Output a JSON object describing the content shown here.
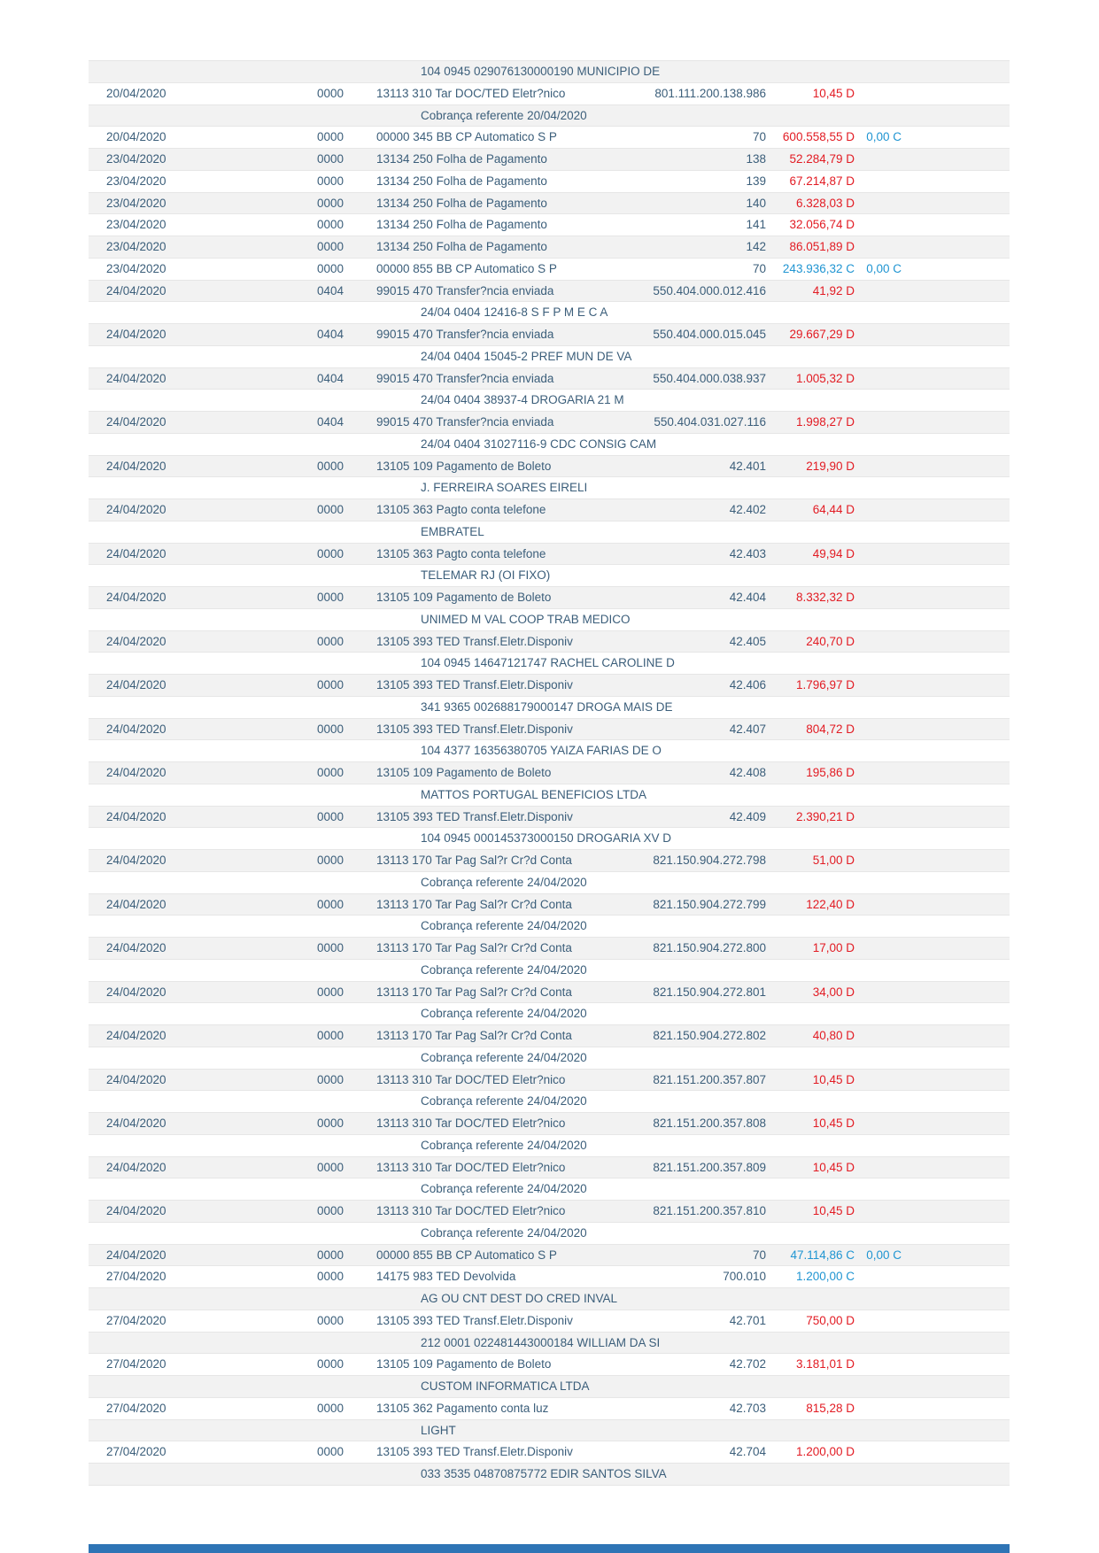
{
  "document_type": "bank-statement-page",
  "colors": {
    "debit": "#E21B23",
    "credit": "#2095D2",
    "body_text": "#3B5E7A",
    "stripe": "#F2F2F2",
    "footer_bar": "#2E74B5"
  },
  "table": {
    "columns": [
      "date",
      "agency",
      "description",
      "document",
      "value",
      "balance"
    ],
    "rows": [
      {
        "k": "d",
        "text": "104 0945 029076130000190 MUNICIPIO DE"
      },
      {
        "k": "m",
        "date": "20/04/2020",
        "ag": "0000",
        "desc": "13113 310 Tar DOC/TED Eletr?nico",
        "doc": "801.111.200.138.986",
        "val": "10,45",
        "vt": "D",
        "bal": null
      },
      {
        "k": "d",
        "text": "Cobrança referente 20/04/2020"
      },
      {
        "k": "m",
        "date": "20/04/2020",
        "ag": "0000",
        "desc": "00000 345 BB CP Automatico S P",
        "doc": "70",
        "val": "600.558,55",
        "vt": "D",
        "bal": "0,00 C"
      },
      {
        "k": "m",
        "date": "23/04/2020",
        "ag": "0000",
        "desc": "13134 250 Folha de Pagamento",
        "doc": "138",
        "val": "52.284,79",
        "vt": "D",
        "bal": null
      },
      {
        "k": "m",
        "date": "23/04/2020",
        "ag": "0000",
        "desc": "13134 250 Folha de Pagamento",
        "doc": "139",
        "val": "67.214,87",
        "vt": "D",
        "bal": null
      },
      {
        "k": "m",
        "date": "23/04/2020",
        "ag": "0000",
        "desc": "13134 250 Folha de Pagamento",
        "doc": "140",
        "val": "6.328,03",
        "vt": "D",
        "bal": null
      },
      {
        "k": "m",
        "date": "23/04/2020",
        "ag": "0000",
        "desc": "13134 250 Folha de Pagamento",
        "doc": "141",
        "val": "32.056,74",
        "vt": "D",
        "bal": null
      },
      {
        "k": "m",
        "date": "23/04/2020",
        "ag": "0000",
        "desc": "13134 250 Folha de Pagamento",
        "doc": "142",
        "val": "86.051,89",
        "vt": "D",
        "bal": null
      },
      {
        "k": "m",
        "date": "23/04/2020",
        "ag": "0000",
        "desc": "00000 855 BB CP Automatico S P",
        "doc": "70",
        "val": "243.936,32",
        "vt": "C",
        "bal": "0,00 C"
      },
      {
        "k": "m",
        "date": "24/04/2020",
        "ag": "0404",
        "desc": "99015 470 Transfer?ncia enviada",
        "doc": "550.404.000.012.416",
        "val": "41,92",
        "vt": "D",
        "bal": null
      },
      {
        "k": "d",
        "text": "24/04 0404 12416-8 S F P M E C A"
      },
      {
        "k": "m",
        "date": "24/04/2020",
        "ag": "0404",
        "desc": "99015 470 Transfer?ncia enviada",
        "doc": "550.404.000.015.045",
        "val": "29.667,29",
        "vt": "D",
        "bal": null
      },
      {
        "k": "d",
        "text": "24/04 0404 15045-2 PREF MUN DE VA"
      },
      {
        "k": "m",
        "date": "24/04/2020",
        "ag": "0404",
        "desc": "99015 470 Transfer?ncia enviada",
        "doc": "550.404.000.038.937",
        "val": "1.005,32",
        "vt": "D",
        "bal": null
      },
      {
        "k": "d",
        "text": "24/04 0404 38937-4 DROGARIA 21 M"
      },
      {
        "k": "m",
        "date": "24/04/2020",
        "ag": "0404",
        "desc": "99015 470 Transfer?ncia enviada",
        "doc": "550.404.031.027.116",
        "val": "1.998,27",
        "vt": "D",
        "bal": null
      },
      {
        "k": "d",
        "text": "24/04 0404 31027116-9 CDC CONSIG CAM"
      },
      {
        "k": "m",
        "date": "24/04/2020",
        "ag": "0000",
        "desc": "13105 109 Pagamento de Boleto",
        "doc": "42.401",
        "val": "219,90",
        "vt": "D",
        "bal": null
      },
      {
        "k": "d",
        "text": "J. FERREIRA SOARES EIRELI"
      },
      {
        "k": "m",
        "date": "24/04/2020",
        "ag": "0000",
        "desc": "13105 363 Pagto conta telefone",
        "doc": "42.402",
        "val": "64,44",
        "vt": "D",
        "bal": null
      },
      {
        "k": "d",
        "text": "EMBRATEL"
      },
      {
        "k": "m",
        "date": "24/04/2020",
        "ag": "0000",
        "desc": "13105 363 Pagto conta telefone",
        "doc": "42.403",
        "val": "49,94",
        "vt": "D",
        "bal": null
      },
      {
        "k": "d",
        "text": "TELEMAR RJ (OI FIXO)"
      },
      {
        "k": "m",
        "date": "24/04/2020",
        "ag": "0000",
        "desc": "13105 109 Pagamento de Boleto",
        "doc": "42.404",
        "val": "8.332,32",
        "vt": "D",
        "bal": null
      },
      {
        "k": "d",
        "text": "UNIMED M VAL COOP TRAB MEDICO"
      },
      {
        "k": "m",
        "date": "24/04/2020",
        "ag": "0000",
        "desc": "13105 393 TED Transf.Eletr.Disponiv",
        "doc": "42.405",
        "val": "240,70",
        "vt": "D",
        "bal": null
      },
      {
        "k": "d",
        "text": "104 0945 14647121747 RACHEL CAROLINE D"
      },
      {
        "k": "m",
        "date": "24/04/2020",
        "ag": "0000",
        "desc": "13105 393 TED Transf.Eletr.Disponiv",
        "doc": "42.406",
        "val": "1.796,97",
        "vt": "D",
        "bal": null
      },
      {
        "k": "d",
        "text": "341 9365 002688179000147 DROGA MAIS DE"
      },
      {
        "k": "m",
        "date": "24/04/2020",
        "ag": "0000",
        "desc": "13105 393 TED Transf.Eletr.Disponiv",
        "doc": "42.407",
        "val": "804,72",
        "vt": "D",
        "bal": null
      },
      {
        "k": "d",
        "text": "104 4377 16356380705 YAIZA FARIAS DE O"
      },
      {
        "k": "m",
        "date": "24/04/2020",
        "ag": "0000",
        "desc": "13105 109 Pagamento de Boleto",
        "doc": "42.408",
        "val": "195,86",
        "vt": "D",
        "bal": null
      },
      {
        "k": "d",
        "text": "MATTOS PORTUGAL BENEFICIOS LTDA"
      },
      {
        "k": "m",
        "date": "24/04/2020",
        "ag": "0000",
        "desc": "13105 393 TED Transf.Eletr.Disponiv",
        "doc": "42.409",
        "val": "2.390,21",
        "vt": "D",
        "bal": null
      },
      {
        "k": "d",
        "text": "104 0945 000145373000150 DROGARIA XV D"
      },
      {
        "k": "m",
        "date": "24/04/2020",
        "ag": "0000",
        "desc": "13113 170 Tar Pag Sal?r Cr?d Conta",
        "doc": "821.150.904.272.798",
        "val": "51,00",
        "vt": "D",
        "bal": null
      },
      {
        "k": "d",
        "text": "Cobrança referente 24/04/2020"
      },
      {
        "k": "m",
        "date": "24/04/2020",
        "ag": "0000",
        "desc": "13113 170 Tar Pag Sal?r Cr?d Conta",
        "doc": "821.150.904.272.799",
        "val": "122,40",
        "vt": "D",
        "bal": null
      },
      {
        "k": "d",
        "text": "Cobrança referente 24/04/2020"
      },
      {
        "k": "m",
        "date": "24/04/2020",
        "ag": "0000",
        "desc": "13113 170 Tar Pag Sal?r Cr?d Conta",
        "doc": "821.150.904.272.800",
        "val": "17,00",
        "vt": "D",
        "bal": null
      },
      {
        "k": "d",
        "text": "Cobrança referente 24/04/2020"
      },
      {
        "k": "m",
        "date": "24/04/2020",
        "ag": "0000",
        "desc": "13113 170 Tar Pag Sal?r Cr?d Conta",
        "doc": "821.150.904.272.801",
        "val": "34,00",
        "vt": "D",
        "bal": null
      },
      {
        "k": "d",
        "text": "Cobrança referente 24/04/2020"
      },
      {
        "k": "m",
        "date": "24/04/2020",
        "ag": "0000",
        "desc": "13113 170 Tar Pag Sal?r Cr?d Conta",
        "doc": "821.150.904.272.802",
        "val": "40,80",
        "vt": "D",
        "bal": null
      },
      {
        "k": "d",
        "text": "Cobrança referente 24/04/2020"
      },
      {
        "k": "m",
        "date": "24/04/2020",
        "ag": "0000",
        "desc": "13113 310 Tar DOC/TED Eletr?nico",
        "doc": "821.151.200.357.807",
        "val": "10,45",
        "vt": "D",
        "bal": null
      },
      {
        "k": "d",
        "text": "Cobrança referente 24/04/2020"
      },
      {
        "k": "m",
        "date": "24/04/2020",
        "ag": "0000",
        "desc": "13113 310 Tar DOC/TED Eletr?nico",
        "doc": "821.151.200.357.808",
        "val": "10,45",
        "vt": "D",
        "bal": null
      },
      {
        "k": "d",
        "text": "Cobrança referente 24/04/2020"
      },
      {
        "k": "m",
        "date": "24/04/2020",
        "ag": "0000",
        "desc": "13113 310 Tar DOC/TED Eletr?nico",
        "doc": "821.151.200.357.809",
        "val": "10,45",
        "vt": "D",
        "bal": null
      },
      {
        "k": "d",
        "text": "Cobrança referente 24/04/2020"
      },
      {
        "k": "m",
        "date": "24/04/2020",
        "ag": "0000",
        "desc": "13113 310 Tar DOC/TED Eletr?nico",
        "doc": "821.151.200.357.810",
        "val": "10,45",
        "vt": "D",
        "bal": null
      },
      {
        "k": "d",
        "text": "Cobrança referente 24/04/2020"
      },
      {
        "k": "m",
        "date": "24/04/2020",
        "ag": "0000",
        "desc": "00000 855 BB CP Automatico S P",
        "doc": "70",
        "val": "47.114,86",
        "vt": "C",
        "bal": "0,00 C"
      },
      {
        "k": "m",
        "date": "27/04/2020",
        "ag": "0000",
        "desc": "14175 983 TED Devolvida",
        "doc": "700.010",
        "val": "1.200,00",
        "vt": "C",
        "bal": null
      },
      {
        "k": "d",
        "text": "AG OU CNT DEST DO CRED INVAL"
      },
      {
        "k": "m",
        "date": "27/04/2020",
        "ag": "0000",
        "desc": "13105 393 TED Transf.Eletr.Disponiv",
        "doc": "42.701",
        "val": "750,00",
        "vt": "D",
        "bal": null
      },
      {
        "k": "d",
        "text": "212 0001 022481443000184 WILLIAM DA SI"
      },
      {
        "k": "m",
        "date": "27/04/2020",
        "ag": "0000",
        "desc": "13105 109 Pagamento de Boleto",
        "doc": "42.702",
        "val": "3.181,01",
        "vt": "D",
        "bal": null
      },
      {
        "k": "d",
        "text": "CUSTOM INFORMATICA LTDA"
      },
      {
        "k": "m",
        "date": "27/04/2020",
        "ag": "0000",
        "desc": "13105 362 Pagamento conta luz",
        "doc": "42.703",
        "val": "815,28",
        "vt": "D",
        "bal": null
      },
      {
        "k": "d",
        "text": "LIGHT"
      },
      {
        "k": "m",
        "date": "27/04/2020",
        "ag": "0000",
        "desc": "13105 393 TED Transf.Eletr.Disponiv",
        "doc": "42.704",
        "val": "1.200,00",
        "vt": "D",
        "bal": null
      },
      {
        "k": "d",
        "text": "033 3535 04870875772 EDIR SANTOS SILVA"
      }
    ]
  }
}
